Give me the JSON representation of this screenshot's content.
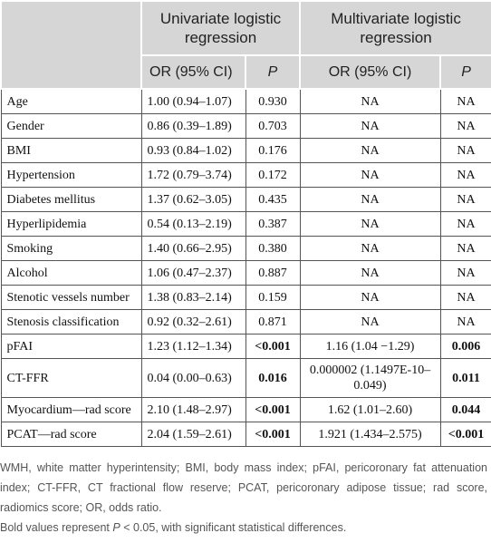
{
  "table": {
    "group_headers": [
      "Univariate logistic regression",
      "Multivariate logistic regression"
    ],
    "subheaders": [
      "OR (95% CI)",
      "P",
      "OR (95% CI)",
      "P"
    ],
    "rows": [
      [
        "Age",
        "1.00 (0.94–1.07)",
        "0.930",
        "NA",
        "NA"
      ],
      [
        "Gender",
        "0.86 (0.39–1.89)",
        "0.703",
        "NA",
        "NA"
      ],
      [
        "BMI",
        "0.93 (0.84–1.02)",
        "0.176",
        "NA",
        "NA"
      ],
      [
        "Hypertension",
        "1.72 (0.79–3.74)",
        "0.172",
        "NA",
        "NA"
      ],
      [
        "Diabetes mellitus",
        "1.37 (0.62–3.05)",
        "0.435",
        "NA",
        "NA"
      ],
      [
        "Hyperlipidemia",
        "0.54 (0.13–2.19)",
        "0.387",
        "NA",
        "NA"
      ],
      [
        "Smoking",
        "1.40 (0.66–2.95)",
        "0.380",
        "NA",
        "NA"
      ],
      [
        "Alcohol",
        "1.06 (0.47–2.37)",
        "0.887",
        "NA",
        "NA"
      ],
      [
        "Stenotic vessels number",
        "1.38 (0.83–2.14)",
        "0.159",
        "NA",
        "NA"
      ],
      [
        "Stenosis classification",
        "0.92 (0.32–2.61)",
        "0.871",
        "NA",
        "NA"
      ],
      [
        "pFAI",
        "1.23 (1.12–1.34)",
        "<0.001",
        "1.16 (1.04 −1.29)",
        "0.006"
      ],
      [
        "CT-FFR",
        "0.04 (0.00–0.63)",
        "0.016",
        "0.000002 (1.1497E-10–0.049)",
        "0.011"
      ],
      [
        "Myocardium—rad score",
        "2.10 (1.48–2.97)",
        "<0.001",
        "1.62 (1.01–2.60)",
        "0.044"
      ],
      [
        "PCAT—rad score",
        "2.04 (1.59–2.61)",
        "<0.001",
        "1.921 (1.434–2.575)",
        "<0.001"
      ]
    ]
  },
  "footnotes": {
    "abbreviations": "WMH, white matter hyperintensity; BMI, body mass index; pFAI, pericoronary fat attenuation index; CT-FFR, CT fractional flow reserve; PCAT, pericoronary adipose tissue; rad score, radiomics score; OR, odds ratio.",
    "bold_note_before": "Bold values represent",
    "bold_note_symbol": "P",
    "bold_note_after": "< 0.05, with significant statistical differences."
  }
}
